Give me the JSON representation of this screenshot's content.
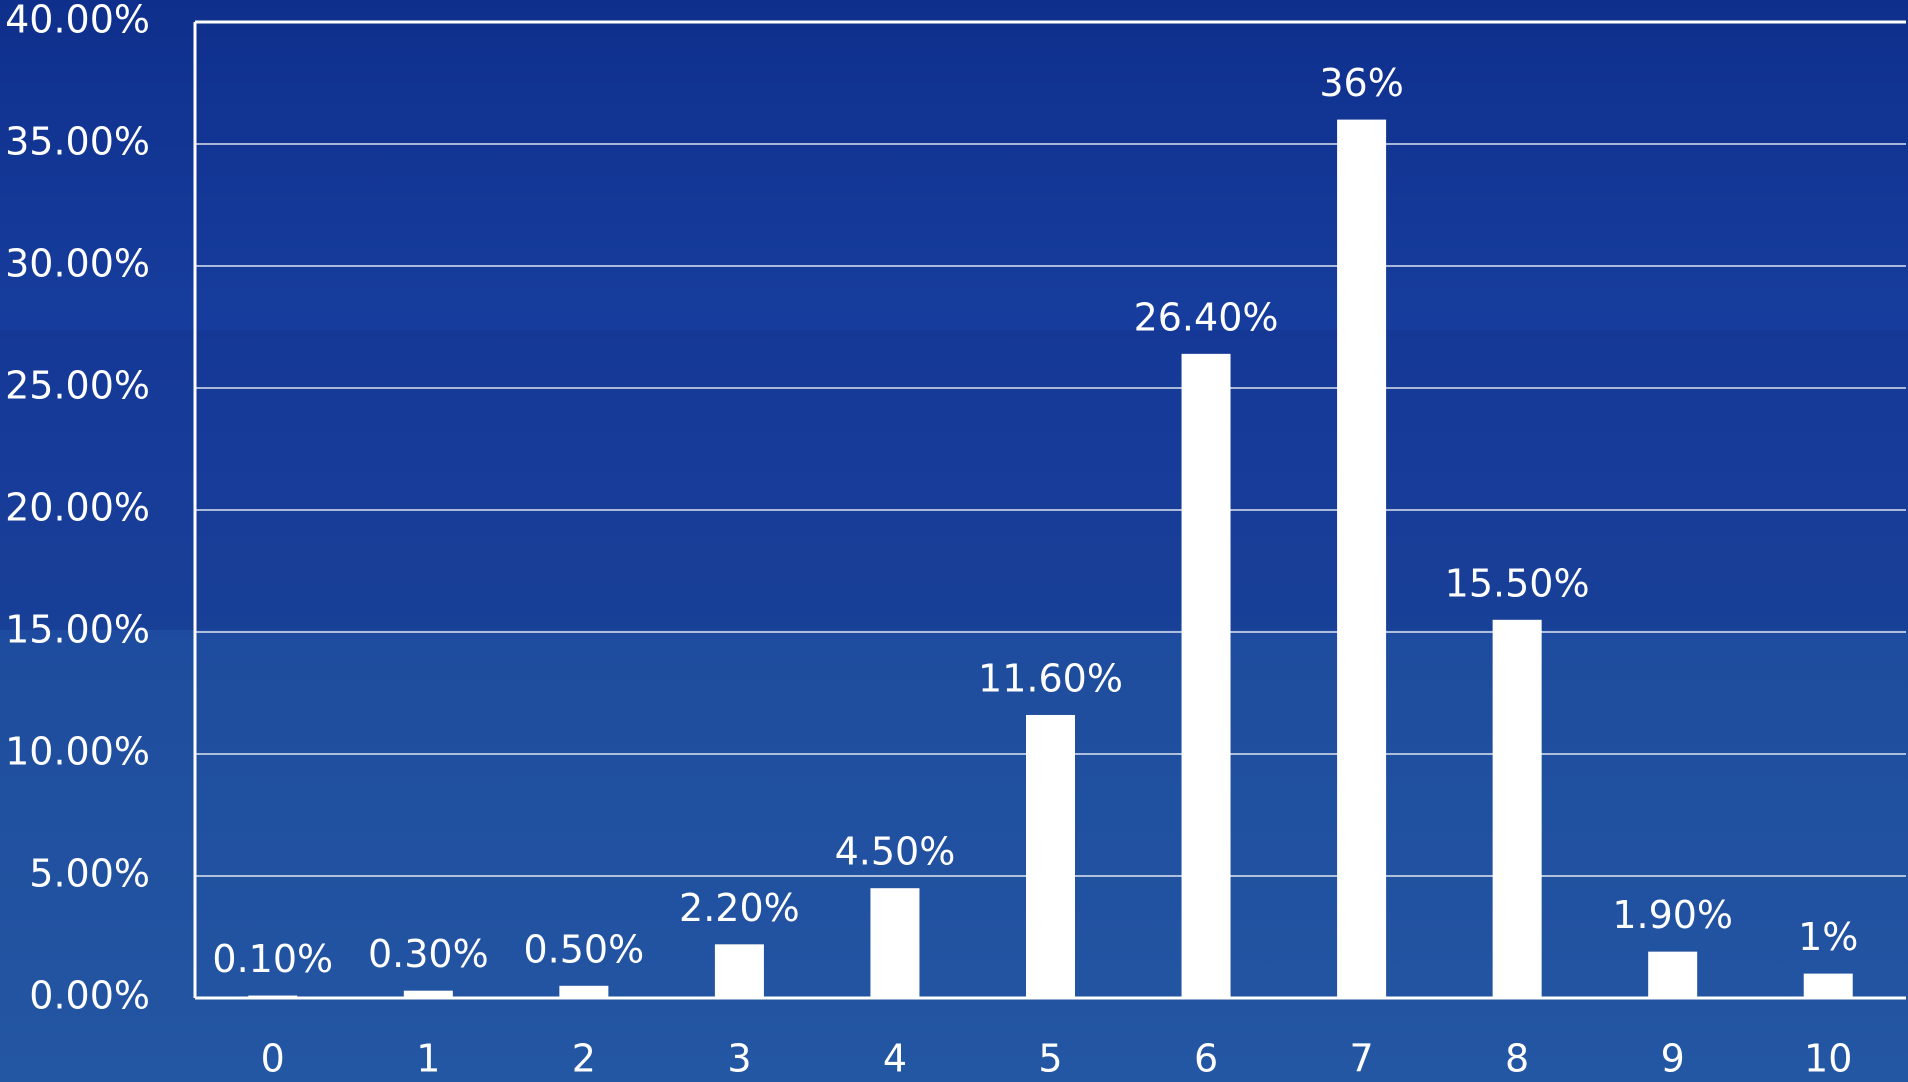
{
  "chart_data": {
    "type": "bar",
    "categories": [
      "0",
      "1",
      "2",
      "3",
      "4",
      "5",
      "6",
      "7",
      "8",
      "9",
      "10"
    ],
    "values": [
      0.1,
      0.3,
      0.5,
      2.2,
      4.5,
      11.6,
      26.4,
      36,
      15.5,
      1.9,
      1
    ],
    "value_labels": [
      "0.10%",
      "0.30%",
      "0.50%",
      "2.20%",
      "4.50%",
      "11.60%",
      "26.40%",
      "36%",
      "15.50%",
      "1.90%",
      "1%"
    ],
    "color": "#ffffff",
    "ylim": [
      0,
      40
    ],
    "yticks": [
      {
        "value": 0,
        "label": "0.00%"
      },
      {
        "value": 5,
        "label": "5.00%"
      },
      {
        "value": 10,
        "label": "10.00%"
      },
      {
        "value": 15,
        "label": "15.00%"
      },
      {
        "value": 20,
        "label": "20.00%"
      },
      {
        "value": 25,
        "label": "25.00%"
      },
      {
        "value": 30,
        "label": "30.00%"
      },
      {
        "value": 35,
        "label": "35.00%"
      },
      {
        "value": 40,
        "label": "40.00%"
      }
    ],
    "grid": true
  }
}
